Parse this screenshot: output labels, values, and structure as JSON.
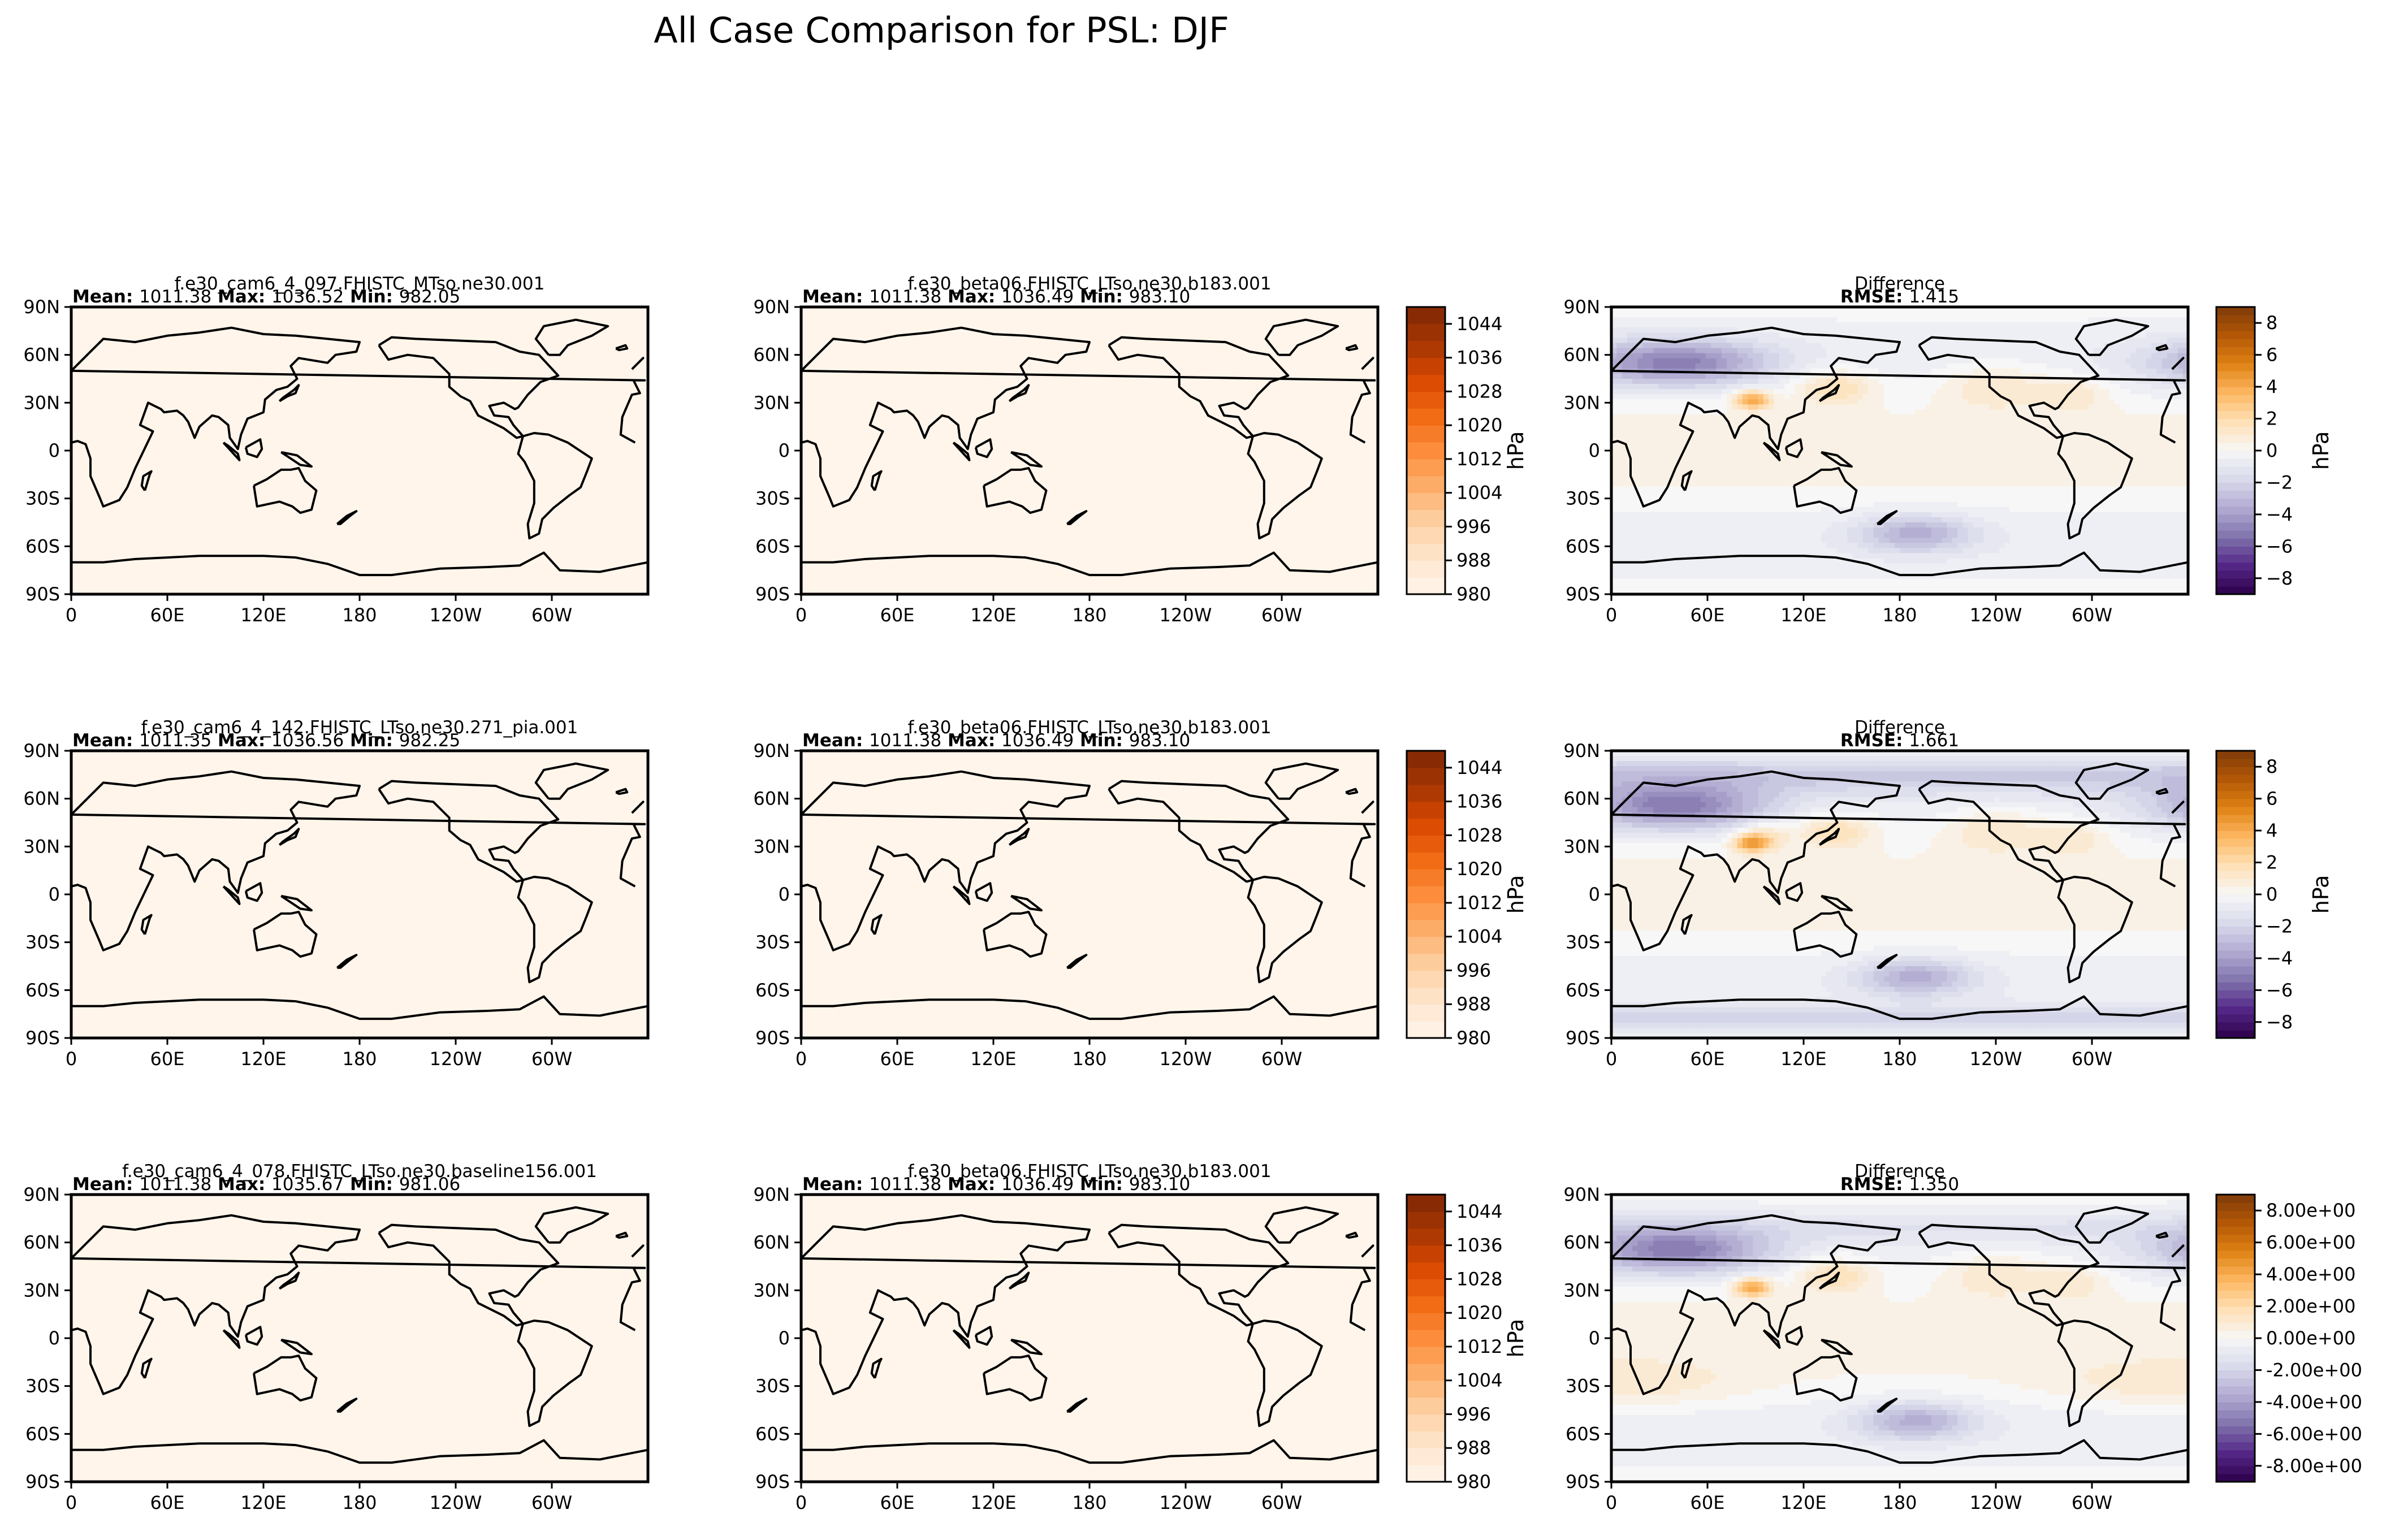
{
  "title": "All Case Comparison for PSL: DJF",
  "colors": {
    "oranges": [
      "#fff5eb",
      "#fee6ce",
      "#fdd0a2",
      "#fdae6b",
      "#fd8d3c",
      "#f16913",
      "#d94801",
      "#a63603",
      "#7f2704"
    ],
    "puor": [
      "#2d004b",
      "#542788",
      "#8073ac",
      "#b2abd2",
      "#d8daeb",
      "#f7f7f7",
      "#fee0b6",
      "#fdb863",
      "#e08214",
      "#b35806",
      "#7f3b08"
    ],
    "land": "none",
    "coast": "#000000"
  },
  "chart_data": [
    {
      "type": "heatmap",
      "panel": "r1c1",
      "title": "f.e30_cam6_4_097.FHISTC_MTso.ne30.001",
      "stats": {
        "mean_label": "Mean:",
        "mean": "1011.38",
        "max_label": "Max:",
        "max": "1036.52",
        "min_label": "Min:",
        "min": "982.05"
      },
      "xticks": [
        "0",
        "60E",
        "120E",
        "180",
        "120W",
        "60W"
      ],
      "yticks": [
        "90N",
        "60N",
        "30N",
        "0",
        "30S",
        "60S",
        "90S"
      ],
      "field": "psl",
      "variant": 0
    },
    {
      "type": "heatmap",
      "panel": "r1c2",
      "title": "f.e30_beta06.FHISTC_LTso.ne30.b183.001",
      "stats": {
        "mean_label": "Mean:",
        "mean": "1011.38",
        "max_label": "Max:",
        "max": "1036.49",
        "min_label": "Min:",
        "min": "983.10"
      },
      "xticks": [
        "0",
        "60E",
        "120E",
        "180",
        "120W",
        "60W"
      ],
      "yticks": [
        "90N",
        "60N",
        "30N",
        "0",
        "30S",
        "60S",
        "90S"
      ],
      "field": "psl",
      "variant": 1,
      "colorbar": {
        "label": "hPa",
        "range": [
          980,
          1048
        ],
        "ticks": [
          "1044",
          "1036",
          "1028",
          "1020",
          "1012",
          "1004",
          "996",
          "988",
          "980"
        ]
      }
    },
    {
      "type": "heatmap",
      "panel": "r1c3",
      "title": "Difference",
      "stats": {
        "rmse_label": "RMSE:",
        "rmse": "1.415"
      },
      "xticks": [
        "0",
        "60E",
        "120E",
        "180",
        "120W",
        "60W"
      ],
      "yticks": [
        "90N",
        "60N",
        "30N",
        "0",
        "30S",
        "60S",
        "90S"
      ],
      "field": "diff",
      "variant": 0,
      "colorbar": {
        "label": "hPa",
        "range": [
          -9,
          9
        ],
        "ticks": [
          "8",
          "6",
          "4",
          "2",
          "0",
          "−2",
          "−4",
          "−6",
          "−8"
        ]
      }
    },
    {
      "type": "heatmap",
      "panel": "r2c1",
      "title": "f.e30_cam6_4_142.FHISTC_LTso.ne30.271_pia.001",
      "stats": {
        "mean_label": "Mean:",
        "mean": "1011.35",
        "max_label": "Max:",
        "max": "1036.56",
        "min_label": "Min:",
        "min": "982.25"
      },
      "xticks": [
        "0",
        "60E",
        "120E",
        "180",
        "120W",
        "60W"
      ],
      "yticks": [
        "90N",
        "60N",
        "30N",
        "0",
        "30S",
        "60S",
        "90S"
      ],
      "field": "psl",
      "variant": 2
    },
    {
      "type": "heatmap",
      "panel": "r2c2",
      "title": "f.e30_beta06.FHISTC_LTso.ne30.b183.001",
      "stats": {
        "mean_label": "Mean:",
        "mean": "1011.38",
        "max_label": "Max:",
        "max": "1036.49",
        "min_label": "Min:",
        "min": "983.10"
      },
      "xticks": [
        "0",
        "60E",
        "120E",
        "180",
        "120W",
        "60W"
      ],
      "yticks": [
        "90N",
        "60N",
        "30N",
        "0",
        "30S",
        "60S",
        "90S"
      ],
      "field": "psl",
      "variant": 1,
      "colorbar": {
        "label": "hPa",
        "range": [
          980,
          1048
        ],
        "ticks": [
          "1044",
          "1036",
          "1028",
          "1020",
          "1012",
          "1004",
          "996",
          "988",
          "980"
        ]
      }
    },
    {
      "type": "heatmap",
      "panel": "r2c3",
      "title": "Difference",
      "stats": {
        "rmse_label": "RMSE:",
        "rmse": "1.661"
      },
      "xticks": [
        "0",
        "60E",
        "120E",
        "180",
        "120W",
        "60W"
      ],
      "yticks": [
        "90N",
        "60N",
        "30N",
        "0",
        "30S",
        "60S",
        "90S"
      ],
      "field": "diff",
      "variant": 1,
      "colorbar": {
        "label": "hPa",
        "range": [
          -9,
          9
        ],
        "ticks": [
          "8",
          "6",
          "4",
          "2",
          "0",
          "−2",
          "−4",
          "−6",
          "−8"
        ]
      }
    },
    {
      "type": "heatmap",
      "panel": "r3c1",
      "title": "f.e30_cam6_4_078.FHISTC_LTso.ne30.baseline156.001",
      "stats": {
        "mean_label": "Mean:",
        "mean": "1011.38",
        "max_label": "Max:",
        "max": "1035.67",
        "min_label": "Min:",
        "min": "981.06"
      },
      "xticks": [
        "0",
        "60E",
        "120E",
        "180",
        "120W",
        "60W"
      ],
      "yticks": [
        "90N",
        "60N",
        "30N",
        "0",
        "30S",
        "60S",
        "90S"
      ],
      "field": "psl",
      "variant": 3
    },
    {
      "type": "heatmap",
      "panel": "r3c2",
      "title": "f.e30_beta06.FHISTC_LTso.ne30.b183.001",
      "stats": {
        "mean_label": "Mean:",
        "mean": "1011.38",
        "max_label": "Max:",
        "max": "1036.49",
        "min_label": "Min:",
        "min": "983.10"
      },
      "xticks": [
        "0",
        "60E",
        "120E",
        "180",
        "120W",
        "60W"
      ],
      "yticks": [
        "90N",
        "60N",
        "30N",
        "0",
        "30S",
        "60S",
        "90S"
      ],
      "field": "psl",
      "variant": 1,
      "colorbar": {
        "label": "hPa",
        "range": [
          980,
          1048
        ],
        "ticks": [
          "1044",
          "1036",
          "1028",
          "1020",
          "1012",
          "1004",
          "996",
          "988",
          "980"
        ]
      }
    },
    {
      "type": "heatmap",
      "panel": "r3c3",
      "title": "Difference",
      "stats": {
        "rmse_label": "RMSE:",
        "rmse": "1.350"
      },
      "xticks": [
        "0",
        "60E",
        "120E",
        "180",
        "120W",
        "60W"
      ],
      "yticks": [
        "90N",
        "60N",
        "30N",
        "0",
        "30S",
        "60S",
        "90S"
      ],
      "field": "diff",
      "variant": 2,
      "colorbar": {
        "label": "hPa",
        "range": [
          -9,
          9
        ],
        "ticks": [
          "8.00e+00",
          "6.00e+00",
          "4.00e+00",
          "2.00e+00",
          "0.00e+00",
          "-2.00e+00",
          "-4.00e+00",
          "-6.00e+00",
          "-8.00e+00"
        ]
      }
    }
  ]
}
